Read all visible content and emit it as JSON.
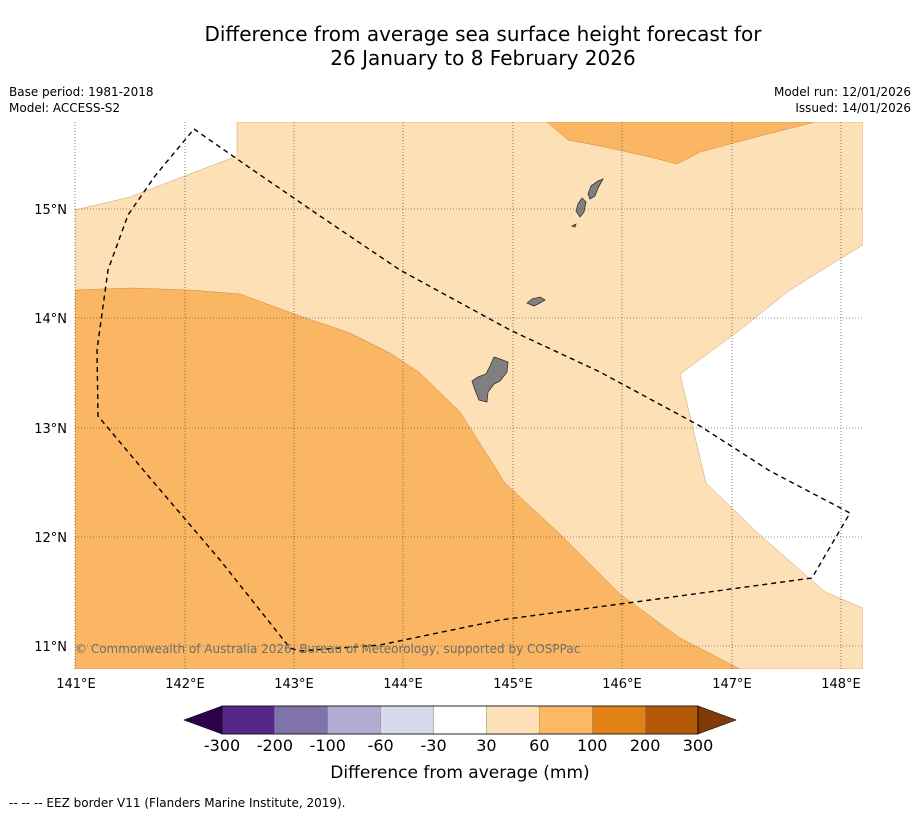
{
  "title": {
    "line1": "Difference from average sea surface height forecast for",
    "line2": "26 January to 8 February 2026"
  },
  "meta": {
    "base_period": "Base period: 1981-2018",
    "model": "Model: ACCESS-S2",
    "model_run": "Model run: 12/01/2026",
    "issued": "Issued: 14/01/2026"
  },
  "map": {
    "x_ticks": [
      "141°E",
      "142°E",
      "143°E",
      "144°E",
      "145°E",
      "146°E",
      "147°E",
      "148°E"
    ],
    "y_ticks": [
      "15°N",
      "14°N",
      "13°N",
      "12°N",
      "11°N"
    ],
    "copyright": "© Commonwealth of Australia 2026, Bureau of Meteorology, supported by COSPPac",
    "colors": {
      "light_orange": "#fde0b5",
      "orange": "#fab662",
      "land": "#808080"
    }
  },
  "colorbar": {
    "ticks": [
      "-300",
      "-200",
      "-100",
      "-60",
      "-30",
      "30",
      "60",
      "100",
      "200",
      "300"
    ],
    "colors": [
      "#2d004b",
      "#542788",
      "#8073ac",
      "#b2abd2",
      "#d8daeb",
      "#ffffff",
      "#fee0b6",
      "#fdb863",
      "#e08214",
      "#b35806",
      "#7f3b08"
    ],
    "label": "Difference from average (mm)"
  },
  "footer": "--  --  -- EEZ border V11 (Flanders Marine Institute, 2019)."
}
